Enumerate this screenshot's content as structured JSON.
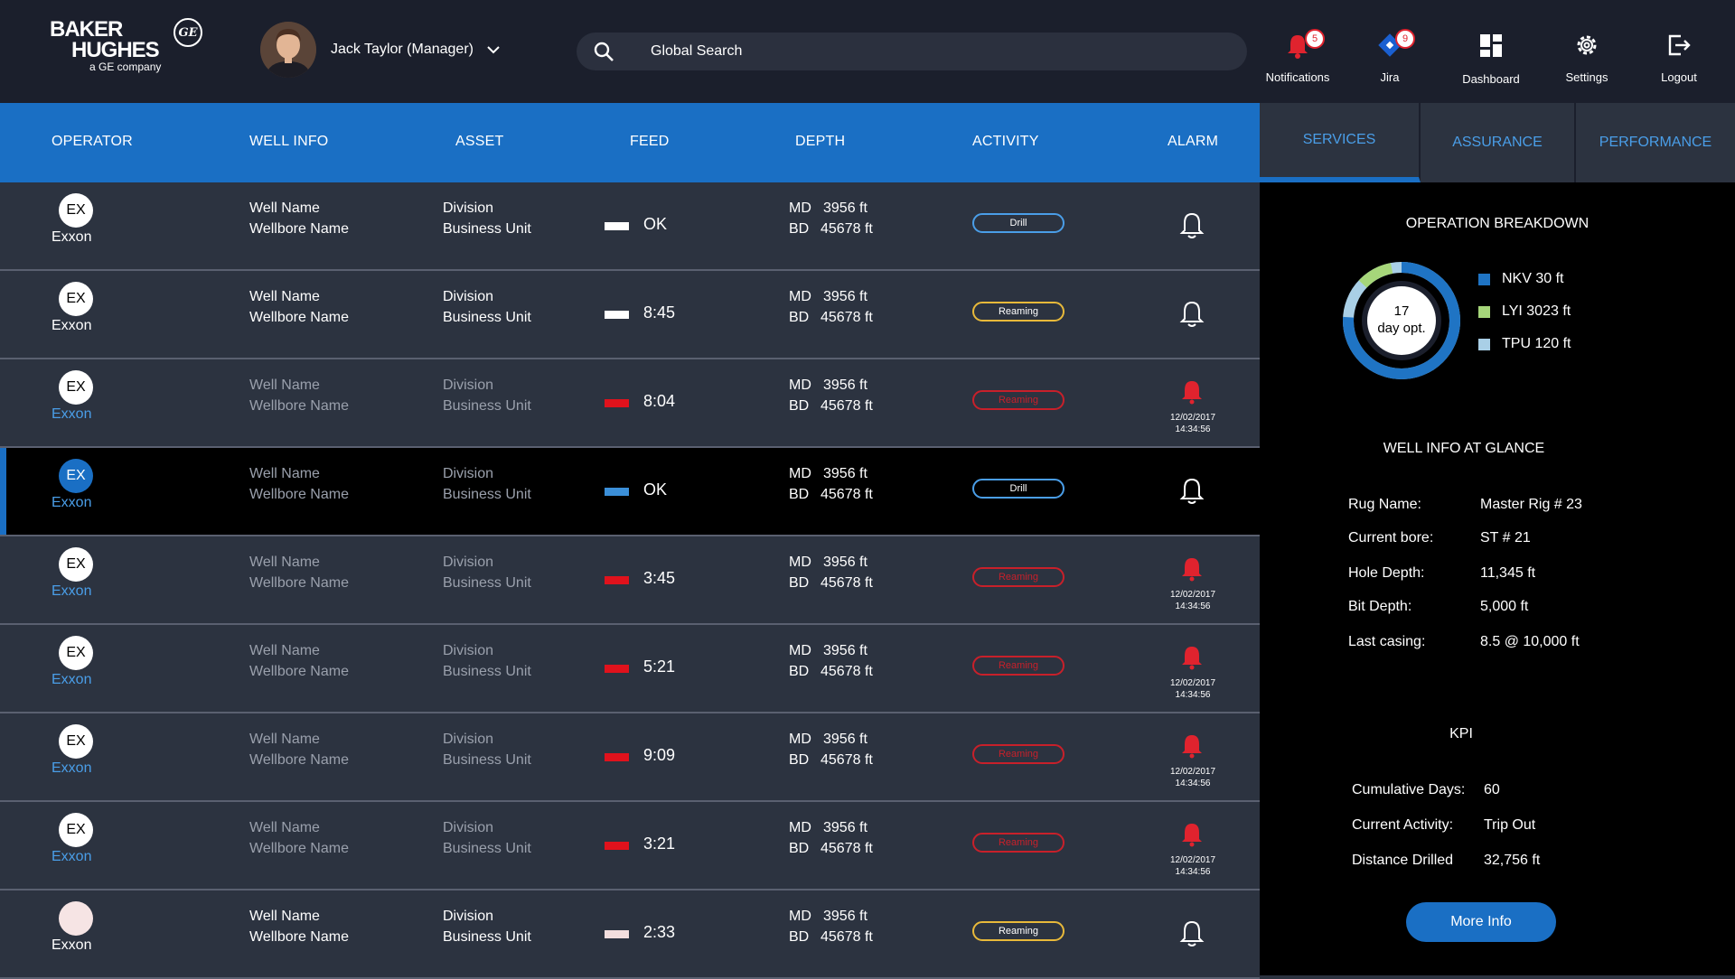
{
  "brand": {
    "line1": "BAKER",
    "line2": "HUGHES",
    "line3": "a GE company",
    "ge": "GE"
  },
  "user": {
    "name": "Jack Taylor (Manager)"
  },
  "search": {
    "placeholder": "Global Search"
  },
  "nav": [
    {
      "label": "Notifications",
      "icon": "bell-icon",
      "badge": "5"
    },
    {
      "label": "Jira",
      "icon": "jira-icon",
      "badge": "9"
    },
    {
      "label": "Dashboard",
      "icon": "dashboard-icon"
    },
    {
      "label": "Settings",
      "icon": "gear-icon"
    },
    {
      "label": "Logout",
      "icon": "logout-icon"
    }
  ],
  "columns": [
    "OPERATOR",
    "WELL INFO",
    "ASSET",
    "FEED",
    "DEPTH",
    "ACTIVITY",
    "ALARM"
  ],
  "rows": [
    {
      "op_code": "EX",
      "op_name": "Exxon",
      "well1": "Well Name",
      "well2": "Wellbore Name",
      "asset1": "Division",
      "asset2": "Business Unit",
      "feed": "OK",
      "feed_color": "#ffffff",
      "md_label": "MD",
      "md": "3956 ft",
      "bd_label": "BD",
      "bd": "45678 ft",
      "activity": "Drill",
      "activity_type": "drill",
      "alarm": false,
      "state": "normal"
    },
    {
      "op_code": "EX",
      "op_name": "Exxon",
      "well1": "Well Name",
      "well2": "Wellbore Name",
      "asset1": "Division",
      "asset2": "Business Unit",
      "feed": "8:45",
      "feed_color": "#ffffff",
      "md_label": "MD",
      "md": "3956 ft",
      "bd_label": "BD",
      "bd": "45678 ft",
      "activity": "Reaming",
      "activity_type": "reaming",
      "alarm": false,
      "state": "normal"
    },
    {
      "op_code": "EX",
      "op_name": "Exxon",
      "well1": "Well Name",
      "well2": "Wellbore Name",
      "asset1": "Division",
      "asset2": "Business Unit",
      "feed": "8:04",
      "feed_color": "#e0121c",
      "md_label": "MD",
      "md": "3956 ft",
      "bd_label": "BD",
      "bd": "45678 ft",
      "activity": "Reaming",
      "activity_type": "alarm",
      "alarm": true,
      "alarm_date": "12/02/2017",
      "alarm_time": "14:34:56",
      "state": "alarm"
    },
    {
      "op_code": "EX",
      "op_name": "Exxon",
      "well1": "Well Name",
      "well2": "Wellbore Name",
      "asset1": "Division",
      "asset2": "Business Unit",
      "feed": "OK",
      "feed_color": "#3b8fd8",
      "md_label": "MD",
      "md": "3956 ft",
      "bd_label": "BD",
      "bd": "45678 ft",
      "activity": "Drill",
      "activity_type": "drill",
      "alarm": false,
      "state": "selected"
    },
    {
      "op_code": "EX",
      "op_name": "Exxon",
      "well1": "Well Name",
      "well2": "Wellbore Name",
      "asset1": "Division",
      "asset2": "Business Unit",
      "feed": "3:45",
      "feed_color": "#e0121c",
      "md_label": "MD",
      "md": "3956 ft",
      "bd_label": "BD",
      "bd": "45678 ft",
      "activity": "Reaming",
      "activity_type": "alarm",
      "alarm": true,
      "alarm_date": "12/02/2017",
      "alarm_time": "14:34:56",
      "state": "alarm"
    },
    {
      "op_code": "EX",
      "op_name": "Exxon",
      "well1": "Well Name",
      "well2": "Wellbore Name",
      "asset1": "Division",
      "asset2": "Business Unit",
      "feed": "5:21",
      "feed_color": "#e0121c",
      "md_label": "MD",
      "md": "3956 ft",
      "bd_label": "BD",
      "bd": "45678 ft",
      "activity": "Reaming",
      "activity_type": "alarm",
      "alarm": true,
      "alarm_date": "12/02/2017",
      "alarm_time": "14:34:56",
      "state": "alarm"
    },
    {
      "op_code": "EX",
      "op_name": "Exxon",
      "well1": "Well Name",
      "well2": "Wellbore Name",
      "asset1": "Division",
      "asset2": "Business Unit",
      "feed": "9:09",
      "feed_color": "#e0121c",
      "md_label": "MD",
      "md": "3956 ft",
      "bd_label": "BD",
      "bd": "45678 ft",
      "activity": "Reaming",
      "activity_type": "alarm",
      "alarm": true,
      "alarm_date": "12/02/2017",
      "alarm_time": "14:34:56",
      "state": "alarm"
    },
    {
      "op_code": "EX",
      "op_name": "Exxon",
      "well1": "Well Name",
      "well2": "Wellbore Name",
      "asset1": "Division",
      "asset2": "Business Unit",
      "feed": "3:21",
      "feed_color": "#e0121c",
      "md_label": "MD",
      "md": "3956 ft",
      "bd_label": "BD",
      "bd": "45678 ft",
      "activity": "Reaming",
      "activity_type": "alarm",
      "alarm": true,
      "alarm_date": "12/02/2017",
      "alarm_time": "14:34:56",
      "state": "alarm"
    },
    {
      "op_code": "",
      "op_name": "Exxon",
      "well1": "Well Name",
      "well2": "Wellbore Name",
      "asset1": "Division",
      "asset2": "Business Unit",
      "feed": "2:33",
      "feed_color": "#f3dede",
      "md_label": "MD",
      "md": "3956 ft",
      "bd_label": "BD",
      "bd": "45678 ft",
      "activity": "Reaming",
      "activity_type": "reaming",
      "alarm": false,
      "state": "normal",
      "circle_color": "#f6e4e4"
    }
  ],
  "sidebar": {
    "tabs": [
      "SERVICES",
      "ASSURANCE",
      "PERFORMANCE"
    ],
    "breakdown_title": "OPERATION BREAKDOWN",
    "donut_line1": "17",
    "donut_line2": "day opt.",
    "legend": [
      {
        "label": "NKV 30 ft",
        "color": "#1f74c4"
      },
      {
        "label": "LYI 3023 ft",
        "color": "#a6d67a"
      },
      {
        "label": "TPU 120 ft",
        "color": "#a9cfe6"
      }
    ],
    "well_title": "WELL INFO AT GLANCE",
    "well_info": [
      {
        "label": "Rug Name:",
        "value": "Master Rig # 23"
      },
      {
        "label": "Current bore:",
        "value": "ST # 21"
      },
      {
        "label": "Hole Depth:",
        "value": "11,345 ft"
      },
      {
        "label": "Bit Depth:",
        "value": "5,000 ft"
      },
      {
        "label": "Last casing:",
        "value": "8.5 @ 10,000 ft"
      }
    ],
    "kpi_title": "KPI",
    "kpi": [
      {
        "label": "Cumulative Days:",
        "value": "60"
      },
      {
        "label": "Current Activity:",
        "value": "Trip Out"
      },
      {
        "label": "Distance Drilled",
        "value": "32,756 ft"
      }
    ],
    "more_label": "More Info"
  }
}
